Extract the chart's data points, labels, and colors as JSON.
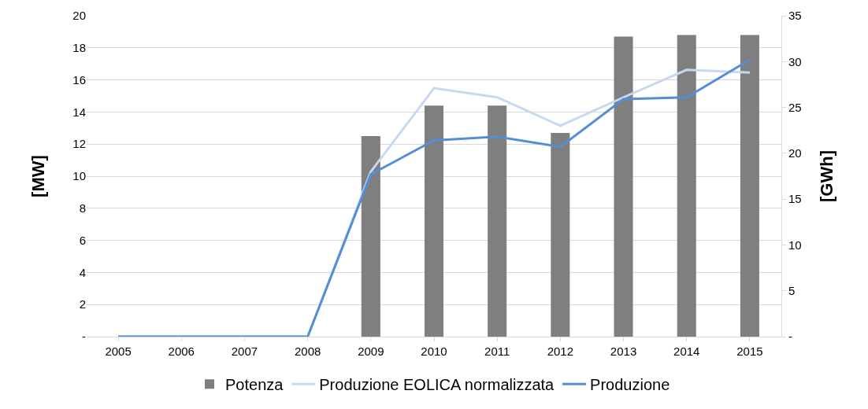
{
  "chart_data": {
    "type": "bar",
    "ylabel": "[MW]",
    "y2label": "[GWh]",
    "categories": [
      "2005",
      "2006",
      "2007",
      "2008",
      "2009",
      "2010",
      "2011",
      "2012",
      "2013",
      "2014",
      "2015"
    ],
    "series": [
      {
        "name": "Potenza",
        "color": "#7f7f7f",
        "values": [
          0,
          0,
          0,
          0,
          12.5,
          14.4,
          14.4,
          12.7,
          18.7,
          18.8,
          18.8
        ]
      },
      {
        "name": "Produzione EOLICA normalizzata",
        "type": "line",
        "axis": "y2",
        "color": "#c6d9f1",
        "values": [
          0,
          0,
          0,
          0,
          18.0,
          27.1,
          26.1,
          23.0,
          26.1,
          29.1,
          28.8
        ]
      },
      {
        "name": "Produzione",
        "type": "line",
        "axis": "y2",
        "color": "#558ed5",
        "values": [
          0,
          0,
          0,
          0,
          17.7,
          21.4,
          21.8,
          20.7,
          25.9,
          26.1,
          30.2
        ]
      }
    ],
    "ylim": [
      0,
      20
    ],
    "yticks": [
      {
        "value": 0,
        "label": "-"
      },
      2,
      4,
      6,
      8,
      10,
      12,
      14,
      16,
      18,
      20
    ],
    "y2lim": [
      0,
      35
    ],
    "y2ticks": [
      {
        "value": 0,
        "label": "-"
      },
      5,
      10,
      15,
      20,
      25,
      30,
      35
    ],
    "grid": "y",
    "legend": "bottom",
    "line_style": "solid",
    "marker": "none"
  }
}
